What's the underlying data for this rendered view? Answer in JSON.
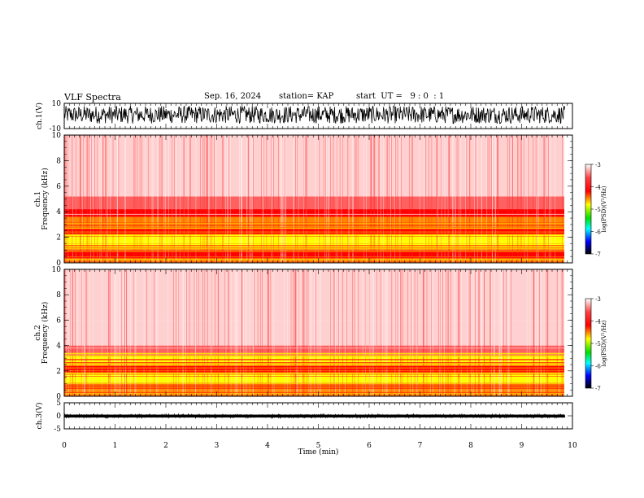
{
  "header": {
    "title": "VLF Spectra",
    "date": "Sep. 16, 2024",
    "station": "station= KAP",
    "start": "start  UT =   9 : 0  : 1"
  },
  "colorbar": {
    "label": "log(PSD)(V²/Hz)",
    "ticks": [
      "-3",
      "-4",
      "-5",
      "-6",
      "-7"
    ],
    "colors": [
      "#ffffff",
      "#ff0000",
      "#ffff00",
      "#00e000",
      "#00ffff",
      "#0000ff",
      "#000000"
    ]
  },
  "chart_data": [
    {
      "type": "line",
      "panel": "ch1-waveform",
      "ylabel": "ch.1(V)",
      "ylim": [
        -10,
        10
      ],
      "yticks": [
        "10",
        "-10"
      ],
      "xlim": [
        0,
        10
      ],
      "color": "#000000",
      "data_extent_x": [
        0,
        9.85
      ],
      "signal_range": [
        -6,
        8
      ]
    },
    {
      "type": "heatmap",
      "panel": "ch1-spectrogram",
      "ylabel": "ch.1",
      "ylabel2": "Frequency (kHz)",
      "ylim": [
        0,
        10
      ],
      "yticks": [
        "0",
        "2",
        "4",
        "6",
        "8",
        "10"
      ],
      "xlim": [
        0,
        10
      ],
      "zlim": [
        -7,
        -3
      ],
      "zlabel": "log(PSD)(V²/Hz)",
      "bands_khz": [
        {
          "from": 0.0,
          "to": 0.4,
          "level": -4.4
        },
        {
          "from": 0.4,
          "to": 1.0,
          "level": -4.1
        },
        {
          "from": 1.0,
          "to": 1.6,
          "level": -4.7
        },
        {
          "from": 1.6,
          "to": 2.2,
          "level": -4.6
        },
        {
          "from": 2.2,
          "to": 2.6,
          "level": -4.2
        },
        {
          "from": 2.6,
          "to": 3.6,
          "level": -4.5
        },
        {
          "from": 3.6,
          "to": 4.2,
          "level": -4.0
        },
        {
          "from": 4.2,
          "to": 5.2,
          "level": -3.6
        },
        {
          "from": 5.2,
          "to": 10.0,
          "level": -3.4
        }
      ]
    },
    {
      "type": "heatmap",
      "panel": "ch2-spectrogram",
      "ylabel": "ch.2",
      "ylabel2": "Frequency (kHz)",
      "ylim": [
        0,
        10
      ],
      "yticks": [
        "0",
        "2",
        "4",
        "6",
        "8",
        "10"
      ],
      "xlim": [
        0,
        10
      ],
      "zlim": [
        -7,
        -3
      ],
      "zlabel": "log(PSD)(V²/Hz)",
      "bands_khz": [
        {
          "from": 0.0,
          "to": 0.5,
          "level": -4.3
        },
        {
          "from": 0.5,
          "to": 1.1,
          "level": -4.3
        },
        {
          "from": 1.1,
          "to": 1.8,
          "level": -4.7
        },
        {
          "from": 1.8,
          "to": 2.4,
          "level": -4.1
        },
        {
          "from": 2.4,
          "to": 3.2,
          "level": -4.6
        },
        {
          "from": 3.2,
          "to": 4.0,
          "level": -3.8
        },
        {
          "from": 4.0,
          "to": 6.0,
          "level": -3.5
        },
        {
          "from": 6.0,
          "to": 10.0,
          "level": -3.2
        }
      ]
    },
    {
      "type": "line",
      "panel": "ch3-waveform",
      "ylabel": "ch.3(V)",
      "ylim": [
        -5,
        5
      ],
      "yticks": [
        "5",
        "0",
        "-5"
      ],
      "xlim": [
        0,
        10
      ],
      "xticks": [
        "0",
        "1",
        "2",
        "3",
        "4",
        "5",
        "6",
        "7",
        "8",
        "9",
        "10"
      ],
      "xlabel": "Time (min)",
      "color": "#000000",
      "data_extent_x": [
        0,
        9.85
      ],
      "signal_range": [
        -0.6,
        0.4
      ]
    }
  ]
}
